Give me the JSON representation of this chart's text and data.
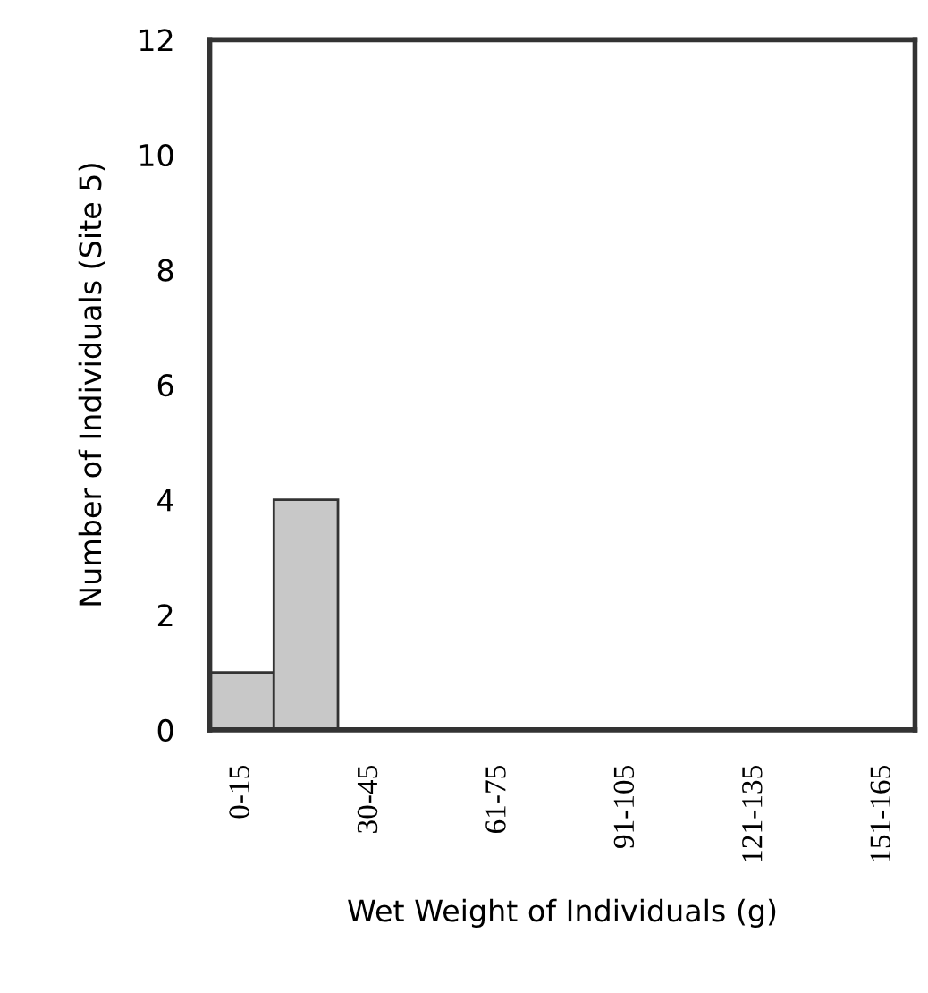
{
  "chart_data": {
    "type": "bar",
    "xlabel": "Wet Weight of Individuals (g)",
    "ylabel": "Number of Individuals (Site 5)",
    "categories": [
      "0-15",
      null,
      "30-45",
      null,
      "61-75",
      null,
      "91-105",
      null,
      "121-135",
      null,
      "151-165"
    ],
    "values": [
      1,
      4,
      0,
      0,
      0,
      0,
      0,
      0,
      0,
      0,
      0
    ],
    "color": "#c8c8c8",
    "ylim": [
      0,
      12
    ],
    "yticks": [
      0,
      2,
      4,
      6,
      8,
      10,
      12
    ],
    "grid": false,
    "legend": false
  }
}
